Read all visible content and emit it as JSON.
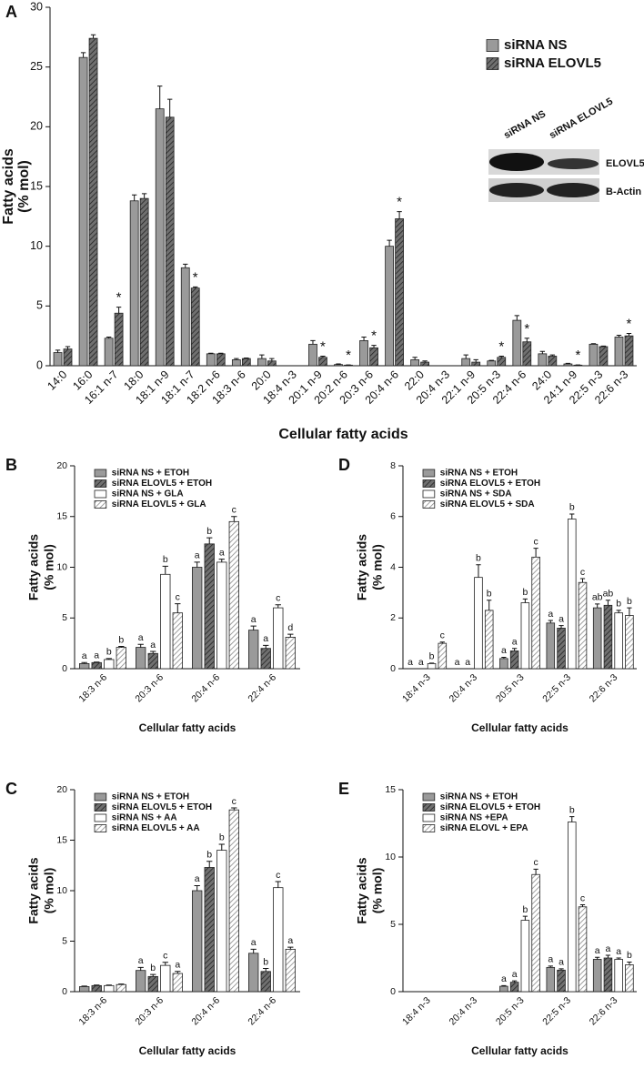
{
  "chart_data": [
    {
      "type": "bar",
      "panel": "A",
      "ylabel": [
        "Fatty acids",
        "(% mol)"
      ],
      "xlabel": "Cellular fatty acids",
      "legend": "upper right",
      "categories": [
        "14:0",
        "16:0",
        "16:1 n-7",
        "18:0",
        "18:1 n-9",
        "18:1 n-7",
        "18:2 n-6",
        "18:3 n-6",
        "20:0",
        "18:4 n-3",
        "20:1 n-9",
        "20:2 n-6",
        "20:3 n-6",
        "20:4 n-6",
        "22:0",
        "20:4 n-3",
        "22:1 n-9",
        "20:5 n-3",
        "22:4 n-6",
        "24:0",
        "24:1 n-9",
        "22:5 n-3",
        "22:6 n-3"
      ],
      "series": [
        {
          "name": "siRNA NS",
          "color": "#9a9a9a",
          "values": [
            1.1,
            25.8,
            2.3,
            13.8,
            21.5,
            8.2,
            1.0,
            0.5,
            0.6,
            0,
            1.8,
            0.1,
            2.1,
            10.0,
            0.5,
            0,
            0.6,
            0.4,
            3.8,
            1.0,
            0.15,
            1.8,
            2.4
          ],
          "errors": [
            0.2,
            0.4,
            0.1,
            0.5,
            1.9,
            0.3,
            0.05,
            0.1,
            0.3,
            0,
            0.3,
            0.05,
            0.3,
            0.5,
            0.2,
            0,
            0.3,
            0.05,
            0.4,
            0.2,
            0.05,
            0.05,
            0.15
          ]
        },
        {
          "name": "siRNA ELOVL5",
          "color": "#707070",
          "hatch": "#222222",
          "values": [
            1.4,
            27.4,
            4.4,
            14.0,
            20.8,
            6.5,
            1.0,
            0.6,
            0.4,
            0,
            0.7,
            0.05,
            1.5,
            12.3,
            0.3,
            0,
            0.3,
            0.7,
            2.0,
            0.8,
            0.05,
            1.6,
            2.5
          ],
          "errors": [
            0.2,
            0.3,
            0.5,
            0.4,
            1.5,
            0.1,
            0.05,
            0.05,
            0.2,
            0,
            0.1,
            0.02,
            0.2,
            0.6,
            0.1,
            0,
            0.2,
            0.1,
            0.3,
            0.1,
            0.02,
            0.05,
            0.2
          ],
          "labels": [
            null,
            null,
            "*",
            null,
            null,
            "*",
            null,
            null,
            null,
            null,
            "*",
            "*",
            "*",
            "*",
            null,
            null,
            null,
            "*",
            "*",
            null,
            "*",
            null,
            "*"
          ]
        }
      ],
      "ylim": [
        0,
        30
      ],
      "yticks": [
        0,
        5,
        10,
        15,
        20,
        25,
        30
      ],
      "inset": {
        "lanes": [
          "siRNA NS",
          "siRNA ELOVL5"
        ],
        "bands": [
          "ELOVL5",
          "B-Actin"
        ]
      }
    },
    {
      "type": "bar",
      "panel": "B",
      "ylabel": [
        "Fatty acids",
        "(% mol)"
      ],
      "xlabel": "Cellular fatty acids",
      "legend": "upper left",
      "categories": [
        "18:3 n-6",
        "20:3 n-6",
        "20:4 n-6",
        "22:4 n-6"
      ],
      "series": [
        {
          "name": "siRNA NS + ETOH",
          "color": "#9a9a9a",
          "values": [
            0.5,
            2.1,
            10.0,
            3.8
          ],
          "errors": [
            0.1,
            0.3,
            0.5,
            0.4
          ],
          "labels": [
            "a",
            "a",
            "a",
            "a"
          ]
        },
        {
          "name": "siRNA ELOVL5 + ETOH",
          "color": "#707070",
          "hatch": "#222222",
          "values": [
            0.6,
            1.5,
            12.3,
            2.0
          ],
          "errors": [
            0.05,
            0.2,
            0.6,
            0.3
          ],
          "labels": [
            "a",
            "a",
            "b",
            "a"
          ]
        },
        {
          "name": "siRNA NS + GLA",
          "color": "#ffffff",
          "values": [
            0.9,
            9.3,
            10.5,
            6.0
          ],
          "errors": [
            0.1,
            0.8,
            0.3,
            0.3
          ],
          "labels": [
            "b",
            "b",
            "a",
            "c"
          ]
        },
        {
          "name": "siRNA ELOVL5 + GLA",
          "color": "#ffffff",
          "hatch": "#888888",
          "values": [
            2.1,
            5.5,
            14.5,
            3.1
          ],
          "errors": [
            0.1,
            0.9,
            0.5,
            0.3
          ],
          "labels": [
            "b",
            "c",
            "c",
            "d"
          ]
        }
      ],
      "ylim": [
        0,
        20
      ],
      "yticks": [
        0,
        5,
        10,
        15,
        20
      ]
    },
    {
      "type": "bar",
      "panel": "D",
      "ylabel": [
        "Fatty acids",
        "(% mol)"
      ],
      "xlabel": "Cellular fatty acids",
      "legend": "upper left",
      "categories": [
        "18:4 n-3",
        "20:4 n-3",
        "20:5 n-3",
        "22:5 n-3",
        "22:6 n-3"
      ],
      "series": [
        {
          "name": "siRNA NS + ETOH",
          "color": "#9a9a9a",
          "values": [
            0,
            0,
            0.4,
            1.8,
            2.4
          ],
          "errors": [
            0,
            0,
            0.05,
            0.1,
            0.15
          ],
          "labels": [
            "a",
            "a",
            "a",
            "a",
            "ab"
          ]
        },
        {
          "name": "siRNA ELOVL5 + ETOH",
          "color": "#707070",
          "hatch": "#222222",
          "values": [
            0,
            0,
            0.7,
            1.6,
            2.5
          ],
          "errors": [
            0,
            0,
            0.1,
            0.1,
            0.2
          ],
          "labels": [
            "a",
            "a",
            "a",
            "a",
            "ab"
          ]
        },
        {
          "name": "siRNA NS + SDA",
          "color": "#ffffff",
          "values": [
            0.2,
            3.6,
            2.6,
            5.9,
            2.2
          ],
          "errors": [
            0.02,
            0.5,
            0.15,
            0.2,
            0.1
          ],
          "labels": [
            "b",
            "b",
            "b",
            "b",
            "b"
          ]
        },
        {
          "name": "siRNA ELOVL5 + SDA",
          "color": "#ffffff",
          "hatch": "#888888",
          "values": [
            1.0,
            2.3,
            4.4,
            3.4,
            2.1
          ],
          "errors": [
            0.05,
            0.4,
            0.35,
            0.15,
            0.3
          ],
          "labels": [
            "c",
            "b",
            "c",
            "c",
            "b"
          ]
        }
      ],
      "ylim": [
        0,
        8
      ],
      "yticks": [
        0,
        2,
        4,
        6,
        8
      ]
    },
    {
      "type": "bar",
      "panel": "C",
      "ylabel": [
        "Fatty acids",
        "(% mol)"
      ],
      "xlabel": "Cellular fatty acids",
      "legend": "upper left",
      "categories": [
        "18:3 n-6",
        "20:3 n-6",
        "20:4 n-6",
        "22:4 n-6"
      ],
      "series": [
        {
          "name": "siRNA NS + ETOH",
          "color": "#9a9a9a",
          "values": [
            0.5,
            2.1,
            10.0,
            3.8
          ],
          "errors": [
            0.05,
            0.3,
            0.5,
            0.4
          ],
          "labels": [
            null,
            "a",
            "a",
            "a"
          ]
        },
        {
          "name": "siRNA ELOVL5 + ETOH",
          "color": "#707070",
          "hatch": "#222222",
          "values": [
            0.6,
            1.5,
            12.3,
            2.0
          ],
          "errors": [
            0.05,
            0.2,
            0.6,
            0.3
          ],
          "labels": [
            null,
            "b",
            "b",
            "b"
          ]
        },
        {
          "name": "siRNA NS + AA",
          "color": "#ffffff",
          "values": [
            0.6,
            2.6,
            14.0,
            10.3
          ],
          "errors": [
            0.05,
            0.3,
            0.6,
            0.6
          ],
          "labels": [
            null,
            "c",
            "b",
            "c"
          ]
        },
        {
          "name": "siRNA ELOVL5 + AA",
          "color": "#ffffff",
          "hatch": "#888888",
          "values": [
            0.7,
            1.8,
            18.0,
            4.2
          ],
          "errors": [
            0.05,
            0.2,
            0.2,
            0.2
          ],
          "labels": [
            null,
            "a",
            "c",
            "a"
          ]
        }
      ],
      "ylim": [
        0,
        20
      ],
      "yticks": [
        0,
        5,
        10,
        15,
        20
      ]
    },
    {
      "type": "bar",
      "panel": "E",
      "ylabel": [
        "Fatty acids",
        "(% mol)"
      ],
      "xlabel": "Cellular fatty acids",
      "legend": "upper left",
      "categories": [
        "18:4 n-3",
        "20:4 n-3",
        "20:5 n-3",
        "22:5 n-3",
        "22:6 n-3"
      ],
      "series": [
        {
          "name": "siRNA NS + ETOH",
          "color": "#9a9a9a",
          "values": [
            0,
            0,
            0.4,
            1.8,
            2.4
          ],
          "errors": [
            0,
            0,
            0.05,
            0.1,
            0.15
          ],
          "labels": [
            null,
            null,
            "a",
            "a",
            "a"
          ]
        },
        {
          "name": "siRNA ELOVL5 + ETOH",
          "color": "#707070",
          "hatch": "#222222",
          "values": [
            0,
            0,
            0.7,
            1.6,
            2.5
          ],
          "errors": [
            0,
            0,
            0.1,
            0.1,
            0.2
          ],
          "labels": [
            null,
            null,
            "a",
            "a",
            "a"
          ]
        },
        {
          "name": "siRNA NS +EPA",
          "color": "#ffffff",
          "values": [
            0,
            0,
            5.3,
            12.6,
            2.4
          ],
          "errors": [
            0,
            0,
            0.3,
            0.4,
            0.1
          ],
          "labels": [
            null,
            null,
            "b",
            "b",
            "a"
          ]
        },
        {
          "name": "siRNA ELOVL + EPA",
          "color": "#ffffff",
          "hatch": "#888888",
          "values": [
            0,
            0,
            8.7,
            6.3,
            2.0
          ],
          "errors": [
            0,
            0,
            0.4,
            0.15,
            0.2
          ],
          "labels": [
            null,
            null,
            "c",
            "c",
            "b"
          ]
        }
      ],
      "ylim": [
        0,
        15
      ],
      "yticks": [
        0,
        5,
        10,
        15
      ]
    }
  ]
}
